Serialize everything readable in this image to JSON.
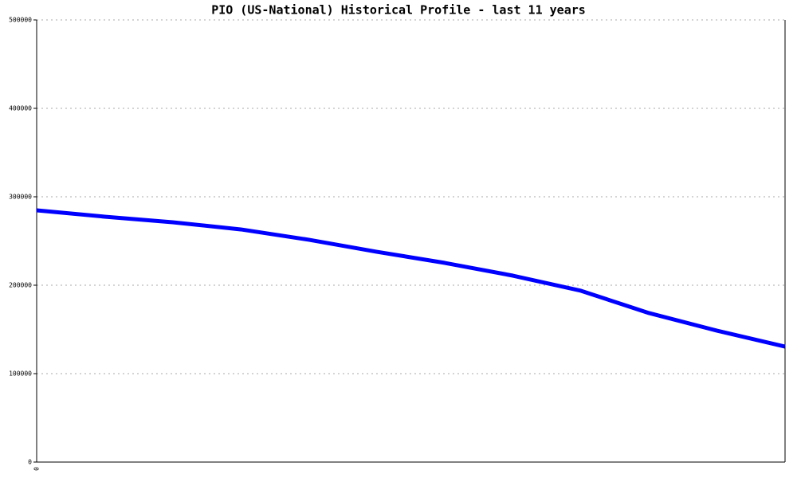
{
  "chart_data": {
    "type": "line",
    "title": "PIO (US-National) Historical Profile - last 11 years",
    "categories": [
      "0",
      null,
      null,
      null,
      null,
      null,
      null,
      null,
      null,
      null,
      null,
      null
    ],
    "series": [
      {
        "color": "#0000ff",
        "values": [
          284700,
          277500,
          271200,
          263100,
          251400,
          237800,
          225200,
          210800,
          193700,
          168500,
          148600,
          130600
        ]
      }
    ],
    "ylim": [
      0,
      500000
    ],
    "yticks": [
      0,
      100000,
      200000,
      300000,
      400000,
      500000
    ],
    "grid": true
  }
}
